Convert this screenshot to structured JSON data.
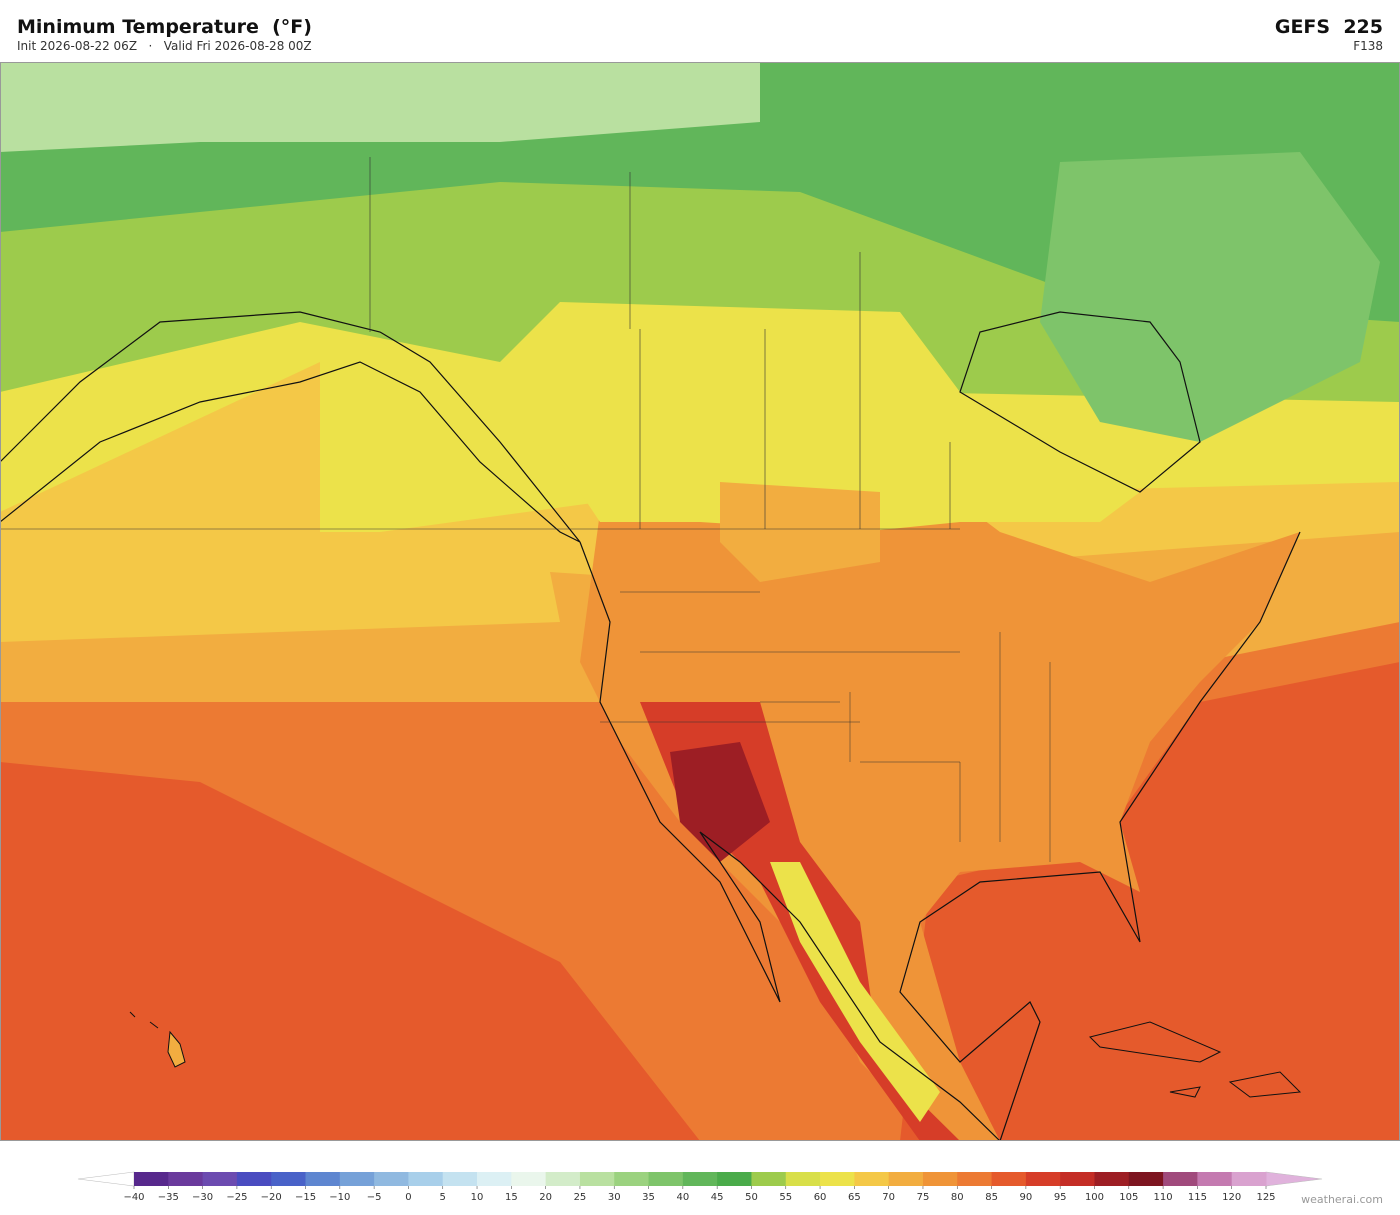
{
  "header": {
    "title": "Minimum Temperature  (°F)",
    "subtitle": "Init 2026-08-22 06Z   ·   Valid Fri 2026-08-28 00Z",
    "model": "GEFS  225",
    "forecast_hour": "F138"
  },
  "colorbar": {
    "lim": [
      -40,
      125
    ],
    "ticks": [
      {
        "value": -40,
        "label": "−40"
      },
      {
        "value": -35,
        "label": "−35"
      },
      {
        "value": -30,
        "label": "−30"
      },
      {
        "value": -25,
        "label": "−25"
      },
      {
        "value": -20,
        "label": "−20"
      },
      {
        "value": -15,
        "label": "−15"
      },
      {
        "value": -10,
        "label": "−10"
      },
      {
        "value": -5,
        "label": "−5"
      },
      0,
      5,
      10,
      15,
      20,
      25,
      30,
      35,
      40,
      45,
      50,
      55,
      60,
      65,
      70,
      75,
      80,
      85,
      90,
      95,
      100,
      105,
      110,
      115,
      120,
      125
    ],
    "colors": [
      "#57288c",
      "#6a3a9c",
      "#6c4bb0",
      "#4a4cc0",
      "#4962c8",
      "#5e86d0",
      "#76a1d8",
      "#90b9e0",
      "#a8cfea",
      "#c4e2f0",
      "#dcf0f4",
      "#eaf6ec",
      "#d3ecc9",
      "#b9e0a0",
      "#9bd27f",
      "#7ec46a",
      "#61b65a",
      "#4aab4a",
      "#9dcb4c",
      "#d8df49",
      "#ece24a",
      "#f4c847",
      "#f2ad40",
      "#ef9438",
      "#ec7a33",
      "#e55a2c",
      "#d63d28",
      "#c42d26",
      "#9d1e24",
      "#7d1520",
      "#a04a7c",
      "#c47ab0",
      "#d9a2cf"
    ],
    "under_color": "#ffffff",
    "over_color": "#e0b2dc"
  },
  "watermark": "weatherai.com"
}
